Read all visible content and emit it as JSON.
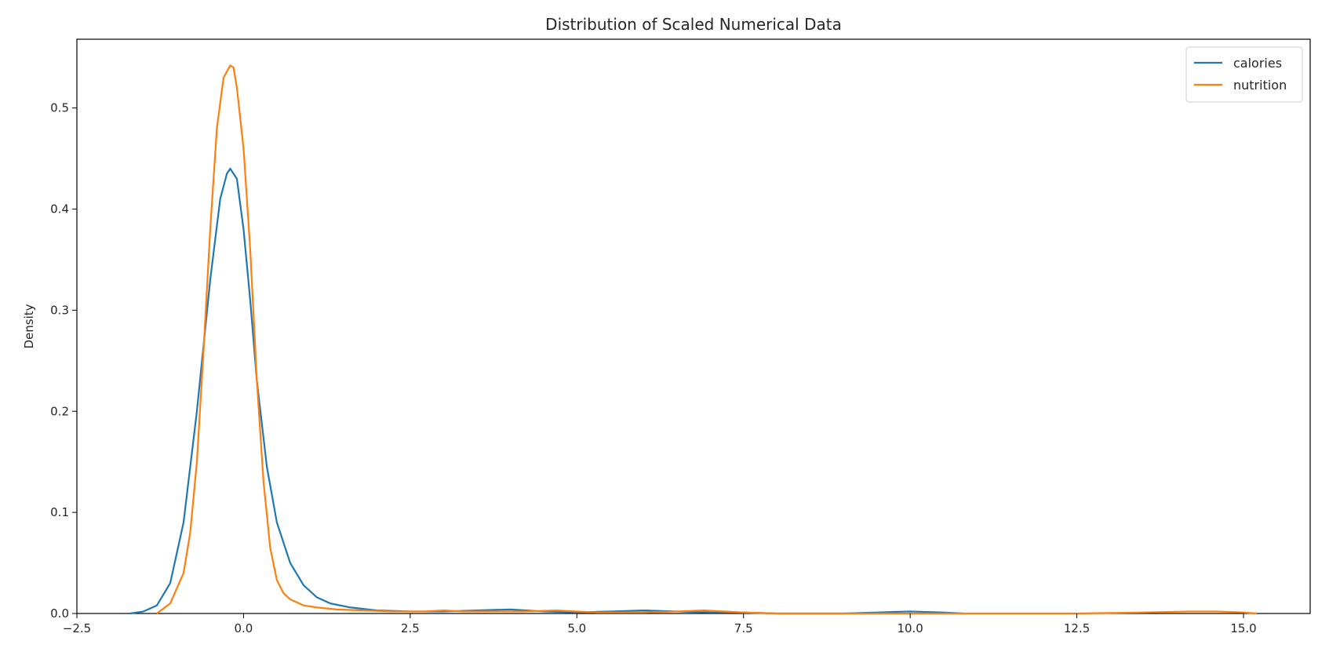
{
  "chart_data": {
    "type": "line",
    "title": "Distribution of Scaled Numerical Data",
    "xlabel": "",
    "ylabel": "Density",
    "xlim": [
      -2.5,
      16.0
    ],
    "ylim": [
      0.0,
      0.568
    ],
    "xticks": [
      -2.5,
      0.0,
      2.5,
      5.0,
      7.5,
      10.0,
      12.5,
      15.0
    ],
    "xtick_labels": [
      "−2.5",
      "0.0",
      "2.5",
      "5.0",
      "7.5",
      "10.0",
      "12.5",
      "15.0"
    ],
    "yticks": [
      0.0,
      0.1,
      0.2,
      0.3,
      0.4,
      0.5
    ],
    "ytick_labels": [
      "0.0",
      "0.1",
      "0.2",
      "0.3",
      "0.4",
      "0.5"
    ],
    "grid": false,
    "legend_position": "top-right",
    "series": [
      {
        "name": "calories",
        "color": "#1f77b4",
        "x": [
          -1.7,
          -1.5,
          -1.3,
          -1.1,
          -0.9,
          -0.7,
          -0.5,
          -0.35,
          -0.25,
          -0.2,
          -0.1,
          0.0,
          0.1,
          0.2,
          0.35,
          0.5,
          0.7,
          0.9,
          1.1,
          1.3,
          1.6,
          2.0,
          2.5,
          3.0,
          3.5,
          4.0,
          4.5,
          5.0,
          5.5,
          6.0,
          6.5,
          7.0,
          7.5,
          8.0,
          9.0,
          9.5,
          10.0,
          10.5,
          10.8
        ],
        "y": [
          0.0,
          0.002,
          0.008,
          0.03,
          0.09,
          0.2,
          0.33,
          0.41,
          0.435,
          0.44,
          0.43,
          0.38,
          0.31,
          0.23,
          0.145,
          0.09,
          0.05,
          0.028,
          0.016,
          0.01,
          0.006,
          0.003,
          0.002,
          0.002,
          0.003,
          0.004,
          0.002,
          0.001,
          0.002,
          0.003,
          0.002,
          0.001,
          0.001,
          0.0,
          0.0,
          0.001,
          0.002,
          0.001,
          0.0
        ]
      },
      {
        "name": "nutrition",
        "color": "#ff7f0e",
        "x": [
          -1.3,
          -1.1,
          -0.9,
          -0.8,
          -0.7,
          -0.6,
          -0.5,
          -0.4,
          -0.3,
          -0.2,
          -0.15,
          -0.1,
          0.0,
          0.1,
          0.2,
          0.3,
          0.4,
          0.5,
          0.6,
          0.7,
          0.9,
          1.1,
          1.4,
          1.8,
          2.2,
          2.7,
          3.0,
          3.3,
          3.7,
          4.2,
          4.7,
          5.0,
          5.3,
          6.0,
          6.5,
          6.9,
          7.5,
          8.0,
          9.0,
          10.0,
          11.0,
          12.5,
          13.5,
          14.2,
          14.6,
          15.0,
          15.2
        ],
        "y": [
          0.0,
          0.01,
          0.04,
          0.08,
          0.15,
          0.26,
          0.38,
          0.48,
          0.53,
          0.542,
          0.54,
          0.52,
          0.46,
          0.36,
          0.23,
          0.13,
          0.065,
          0.033,
          0.02,
          0.014,
          0.008,
          0.006,
          0.004,
          0.003,
          0.002,
          0.002,
          0.003,
          0.002,
          0.002,
          0.002,
          0.003,
          0.002,
          0.001,
          0.001,
          0.002,
          0.003,
          0.001,
          0.0,
          0.0,
          0.0,
          0.0,
          0.0,
          0.001,
          0.002,
          0.002,
          0.001,
          0.0
        ]
      }
    ]
  }
}
